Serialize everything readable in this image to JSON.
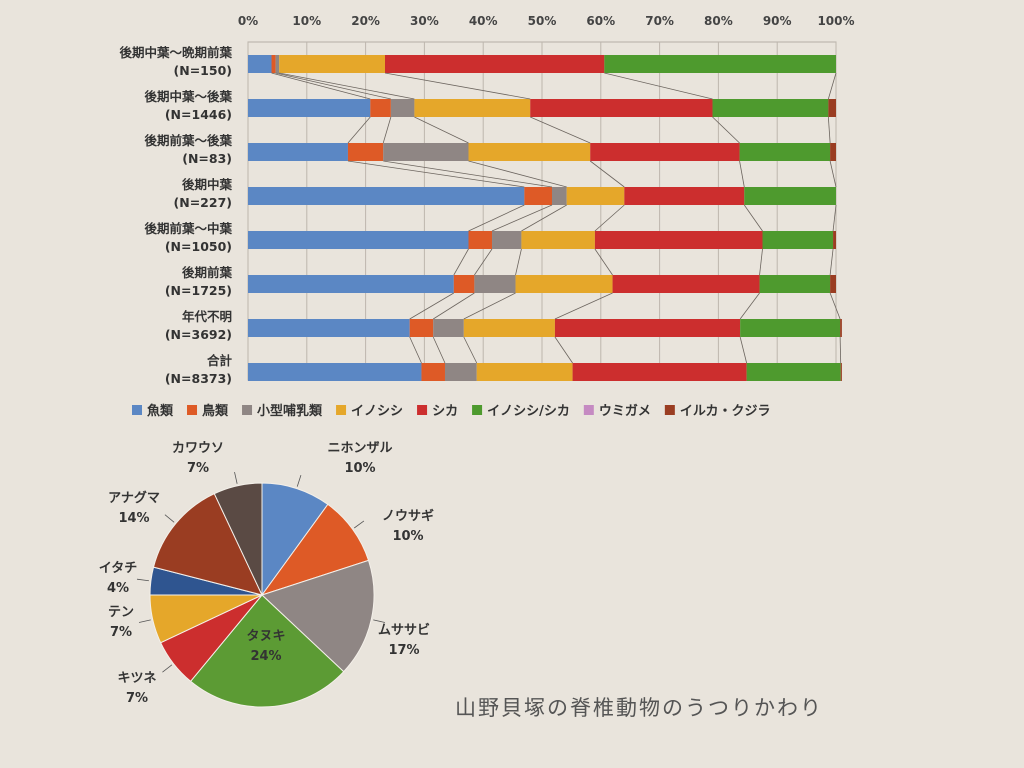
{
  "poster": {
    "title": "山野貝塚の脊椎動物のうつりかわり"
  },
  "colors": {
    "魚類": "#5b87c4",
    "鳥類": "#de5a26",
    "小型哺乳類": "#8f8684",
    "イノシシ": "#e5a72a",
    "シカ": "#cc2e2e",
    "イノシシ/シカ": "#4e9a2e",
    "ウミガメ": "#c58ac2",
    "イルカ・クジラ": "#9a3d22"
  },
  "chart_data": [
    {
      "type": "bar",
      "orientation": "horizontal",
      "stacked": "percent",
      "xlim": [
        0,
        100
      ],
      "x_ticks": [
        "0%",
        "10%",
        "20%",
        "30%",
        "40%",
        "50%",
        "60%",
        "70%",
        "80%",
        "90%",
        "100%"
      ],
      "x_tick_position": "top",
      "grid": true,
      "legend": "bottom",
      "categories": [
        {
          "name": "後期中葉～晩期前葉",
          "n": "(N=150)"
        },
        {
          "name": "後期中葉～後葉",
          "n": "(N=1446)"
        },
        {
          "name": "後期前葉～後葉",
          "n": "(N=83)"
        },
        {
          "name": "後期中葉",
          "n": "(N=227)"
        },
        {
          "name": "後期前葉～中葉",
          "n": "(N=1050)"
        },
        {
          "name": "後期前葉",
          "n": "(N=1725)"
        },
        {
          "name": "年代不明",
          "n": "(N=3692)"
        },
        {
          "name": "合計",
          "n": "(N=8373)"
        }
      ],
      "series": [
        {
          "name": "魚類",
          "values": [
            4.0,
            20.8,
            17.0,
            47.0,
            37.5,
            35.0,
            27.5,
            29.5
          ]
        },
        {
          "name": "鳥類",
          "values": [
            0.7,
            3.5,
            6.0,
            4.7,
            4.0,
            3.5,
            4.0,
            4.0
          ]
        },
        {
          "name": "小型哺乳類",
          "values": [
            0.6,
            4.0,
            14.5,
            2.5,
            5.0,
            7.0,
            5.2,
            5.4
          ]
        },
        {
          "name": "イノシシ",
          "values": [
            18.0,
            19.7,
            20.7,
            9.8,
            12.5,
            16.5,
            15.5,
            16.3
          ]
        },
        {
          "name": "シカ",
          "values": [
            37.3,
            31.0,
            25.4,
            20.4,
            28.5,
            25.0,
            31.5,
            29.6
          ]
        },
        {
          "name": "イノシシ/シカ",
          "values": [
            39.4,
            19.7,
            15.4,
            15.6,
            12.0,
            12.0,
            17.0,
            16.0
          ]
        },
        {
          "name": "ウミガメ",
          "values": [
            0.0,
            0.0,
            0.0,
            0.0,
            0.0,
            0.0,
            0.0,
            0.0
          ]
        },
        {
          "name": "イルカ・クジラ",
          "values": [
            0.0,
            1.3,
            1.0,
            0.0,
            0.5,
            1.0,
            0.3,
            0.2
          ]
        }
      ]
    },
    {
      "type": "pie",
      "slices": [
        {
          "label": "ニホンザル",
          "value": 10,
          "text": "10%",
          "color": "#5b87c4"
        },
        {
          "label": "ノウサギ",
          "value": 10,
          "text": "10%",
          "color": "#de5a26"
        },
        {
          "label": "ムササビ",
          "value": 17,
          "text": "17%",
          "color": "#8f8684"
        },
        {
          "label": "タヌキ",
          "value": 24,
          "text": "24%",
          "color": "#5c9b34"
        },
        {
          "label": "キツネ",
          "value": 7,
          "text": "7%",
          "color": "#cc2e2e"
        },
        {
          "label": "テン",
          "value": 7,
          "text": "7%",
          "color": "#e5a72a"
        },
        {
          "label": "イタチ",
          "value": 4,
          "text": "4%",
          "color": "#2f5590"
        },
        {
          "label": "アナグマ",
          "value": 14,
          "text": "14%",
          "color": "#9a3d22"
        },
        {
          "label": "カワウソ",
          "value": 7,
          "text": "7%",
          "color": "#5a4a44"
        }
      ]
    }
  ]
}
